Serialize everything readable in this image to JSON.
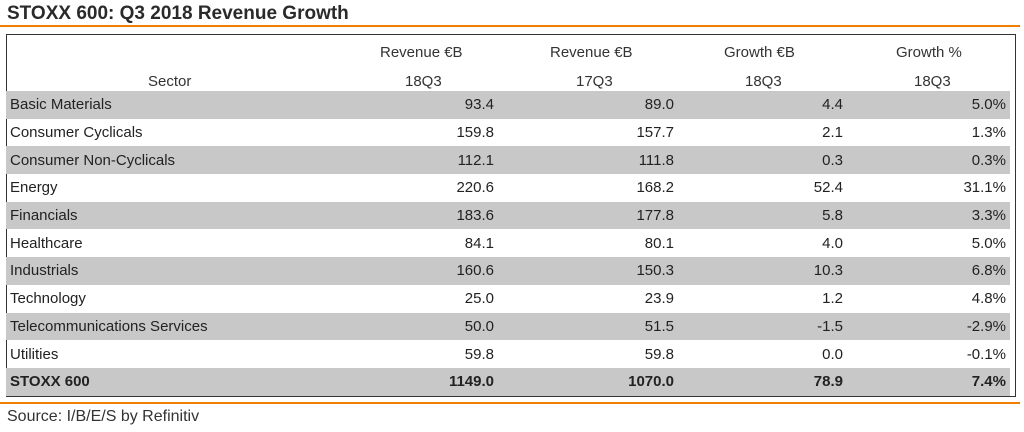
{
  "title": "STOXX 600: Q3 2018 Revenue Growth",
  "source": "Source: I/B/E/S by Refinitiv",
  "colors": {
    "accent_rule": "#f07f00",
    "row_shade": "#c8c8c8"
  },
  "chart_data": {
    "type": "table",
    "title": "STOXX 600: Q3 2018 Revenue Growth",
    "columns": [
      {
        "line1": "",
        "line2": "Sector"
      },
      {
        "line1": "Revenue €B",
        "line2": "18Q3"
      },
      {
        "line1": "Revenue €B",
        "line2": "17Q3"
      },
      {
        "line1": "Growth €B",
        "line2": "18Q3"
      },
      {
        "line1": "Growth %",
        "line2": "18Q3"
      }
    ],
    "rows": [
      {
        "sector": "Basic Materials",
        "rev_18q3": "93.4",
        "rev_17q3": "89.0",
        "growth_eur": "4.4",
        "growth_pct": "5.0%"
      },
      {
        "sector": "Consumer Cyclicals",
        "rev_18q3": "159.8",
        "rev_17q3": "157.7",
        "growth_eur": "2.1",
        "growth_pct": "1.3%"
      },
      {
        "sector": "Consumer Non-Cyclicals",
        "rev_18q3": "112.1",
        "rev_17q3": "111.8",
        "growth_eur": "0.3",
        "growth_pct": "0.3%"
      },
      {
        "sector": "Energy",
        "rev_18q3": "220.6",
        "rev_17q3": "168.2",
        "growth_eur": "52.4",
        "growth_pct": "31.1%"
      },
      {
        "sector": "Financials",
        "rev_18q3": "183.6",
        "rev_17q3": "177.8",
        "growth_eur": "5.8",
        "growth_pct": "3.3%"
      },
      {
        "sector": "Healthcare",
        "rev_18q3": "84.1",
        "rev_17q3": "80.1",
        "growth_eur": "4.0",
        "growth_pct": "5.0%"
      },
      {
        "sector": "Industrials",
        "rev_18q3": "160.6",
        "rev_17q3": "150.3",
        "growth_eur": "10.3",
        "growth_pct": "6.8%"
      },
      {
        "sector": "Technology",
        "rev_18q3": "25.0",
        "rev_17q3": "23.9",
        "growth_eur": "1.2",
        "growth_pct": "4.8%"
      },
      {
        "sector": "Telecommunications Services",
        "rev_18q3": "50.0",
        "rev_17q3": "51.5",
        "growth_eur": "-1.5",
        "growth_pct": "-2.9%"
      },
      {
        "sector": "Utilities",
        "rev_18q3": "59.8",
        "rev_17q3": "59.8",
        "growth_eur": "0.0",
        "growth_pct": "-0.1%"
      }
    ],
    "total": {
      "sector": "STOXX 600",
      "rev_18q3": "1149.0",
      "rev_17q3": "1070.0",
      "growth_eur": "78.9",
      "growth_pct": "7.4%"
    }
  }
}
